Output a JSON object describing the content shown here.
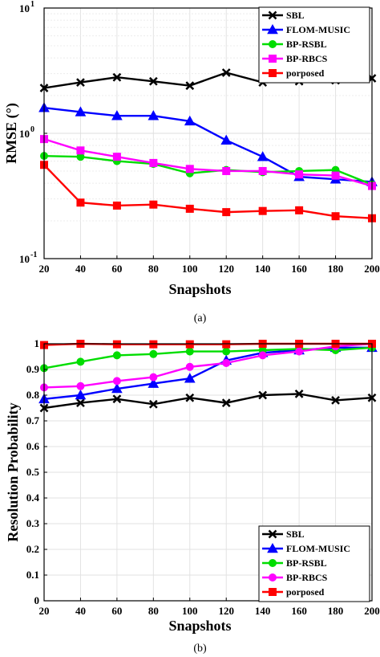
{
  "chart_data": [
    {
      "type": "line",
      "caption": "(a)",
      "xlabel": "Snapshots",
      "ylabel": "RMSE (°)",
      "yscale": "log",
      "xlim": [
        20,
        200
      ],
      "ylim": [
        0.1,
        10
      ],
      "x": [
        20,
        40,
        60,
        80,
        100,
        120,
        140,
        160,
        180,
        200
      ],
      "xticks": [
        "20",
        "40",
        "60",
        "80",
        "100",
        "120",
        "140",
        "160",
        "180",
        "200"
      ],
      "yticks": [
        {
          "value": 0.1,
          "base": "10",
          "exp": "-1"
        },
        {
          "value": 1,
          "base": "10",
          "exp": "0"
        },
        {
          "value": 10,
          "base": "10",
          "exp": "1"
        }
      ],
      "grid": true,
      "legend_position": "top-right",
      "series": [
        {
          "name": "SBL",
          "color": "#000000",
          "marker": "x",
          "values": [
            2.3,
            2.55,
            2.8,
            2.6,
            2.4,
            3.05,
            2.55,
            2.6,
            2.65,
            2.75
          ]
        },
        {
          "name": "FLOM-MUSIC",
          "color": "#0000ff",
          "marker": "triangle",
          "values": [
            1.6,
            1.48,
            1.38,
            1.38,
            1.25,
            0.88,
            0.65,
            0.45,
            0.43,
            0.41
          ]
        },
        {
          "name": "BP-RSBL",
          "color": "#00dd00",
          "marker": "circle",
          "values": [
            0.66,
            0.65,
            0.6,
            0.57,
            0.48,
            0.51,
            0.49,
            0.5,
            0.51,
            0.39
          ]
        },
        {
          "name": "BP-RBCS",
          "color": "#ff00ff",
          "marker": "square",
          "values": [
            0.9,
            0.73,
            0.65,
            0.58,
            0.52,
            0.5,
            0.5,
            0.47,
            0.46,
            0.38
          ]
        },
        {
          "name": "porposed",
          "color": "#ff0000",
          "marker": "square",
          "values": [
            0.56,
            0.28,
            0.265,
            0.27,
            0.25,
            0.235,
            0.24,
            0.243,
            0.218,
            0.21
          ]
        }
      ]
    },
    {
      "type": "line",
      "caption": "(b)",
      "xlabel": "Snapshots",
      "ylabel": "Resolution Probability",
      "xlim": [
        20,
        200
      ],
      "ylim": [
        0,
        1
      ],
      "x": [
        20,
        40,
        60,
        80,
        100,
        120,
        140,
        160,
        180,
        200
      ],
      "xticks": [
        "20",
        "40",
        "60",
        "80",
        "100",
        "120",
        "140",
        "160",
        "180",
        "200"
      ],
      "yticks": [
        "0",
        "0.1",
        "0.2",
        "0.3",
        "0.4",
        "0.5",
        "0.6",
        "0.7",
        "0.8",
        "0.9",
        "1"
      ],
      "grid": true,
      "legend_position": "bottom-right",
      "series": [
        {
          "name": "SBL",
          "color": "#000000",
          "marker": "x",
          "values": [
            0.75,
            0.77,
            0.785,
            0.765,
            0.79,
            0.77,
            0.8,
            0.805,
            0.78,
            0.79
          ]
        },
        {
          "name": "FLOM-MUSIC",
          "color": "#0000ff",
          "marker": "triangle",
          "values": [
            0.785,
            0.8,
            0.825,
            0.845,
            0.865,
            0.935,
            0.965,
            0.975,
            0.985,
            0.985
          ]
        },
        {
          "name": "BP-RSBL",
          "color": "#00dd00",
          "marker": "circle",
          "values": [
            0.905,
            0.93,
            0.955,
            0.96,
            0.97,
            0.97,
            0.975,
            0.98,
            0.975,
            0.985
          ]
        },
        {
          "name": "BP-RBCS",
          "color": "#ff00ff",
          "marker": "circle",
          "values": [
            0.83,
            0.835,
            0.855,
            0.87,
            0.91,
            0.925,
            0.955,
            0.97,
            0.99,
            1.0
          ]
        },
        {
          "name": "porposed",
          "color": "#ff0000",
          "marker": "square",
          "values": [
            0.995,
            1.0,
            0.998,
            0.998,
            0.998,
            0.998,
            1.0,
            1.0,
            1.0,
            1.0
          ]
        }
      ]
    }
  ]
}
